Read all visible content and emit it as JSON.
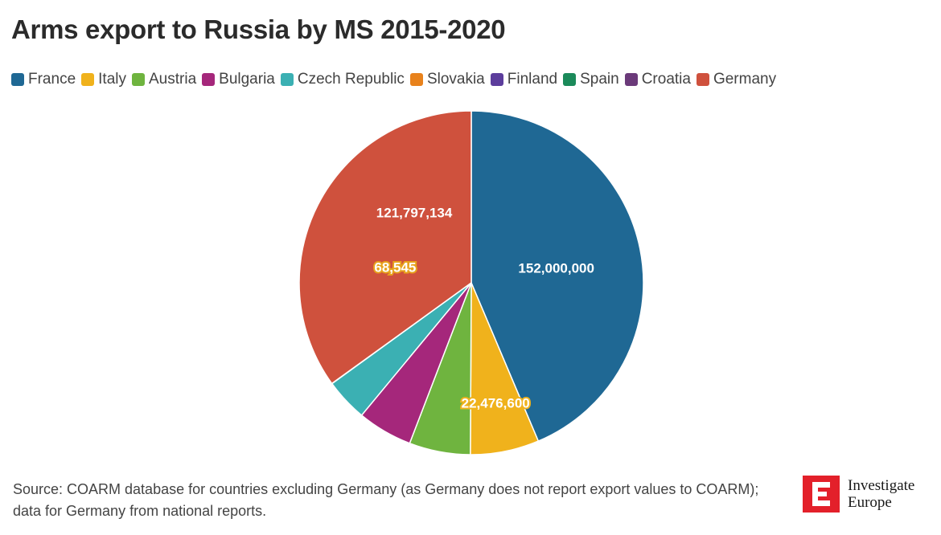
{
  "title": "Arms export to Russia by MS 2015-2020",
  "source": "Source: COARM database for countries excluding Germany (as Germany does not report export values to COARM); data for Germany from national reports.",
  "logo": {
    "line1": "Investigate",
    "line2": "Europe",
    "mark": "E"
  },
  "chart_data": {
    "type": "pie",
    "title": "Arms export to Russia by MS 2015-2020",
    "legend_position": "top",
    "slices": [
      {
        "name": "France",
        "value": 152000000,
        "label": "152,000,000",
        "color": "#1f6894"
      },
      {
        "name": "Italy",
        "value": 22476600,
        "label": "22,476,600",
        "color": "#f0b21c"
      },
      {
        "name": "Austria",
        "value": 20000000,
        "label": "",
        "color": "#6fb43f"
      },
      {
        "name": "Bulgaria",
        "value": 18000000,
        "label": "",
        "color": "#a5277b"
      },
      {
        "name": "Czech Republic",
        "value": 14000000,
        "label": "",
        "color": "#3bb0b3"
      },
      {
        "name": "Slovakia",
        "value": 68545,
        "label": "68,545",
        "color": "#e8821c"
      },
      {
        "name": "Finland",
        "value": 0,
        "label": "",
        "color": "#5c3d9c"
      },
      {
        "name": "Spain",
        "value": 0,
        "label": "",
        "color": "#1b8a5a"
      },
      {
        "name": "Croatia",
        "value": 0,
        "label": "",
        "color": "#6b3a7a"
      },
      {
        "name": "Germany",
        "value": 121797134,
        "label": "121,797,134",
        "color": "#cf513d"
      }
    ]
  }
}
